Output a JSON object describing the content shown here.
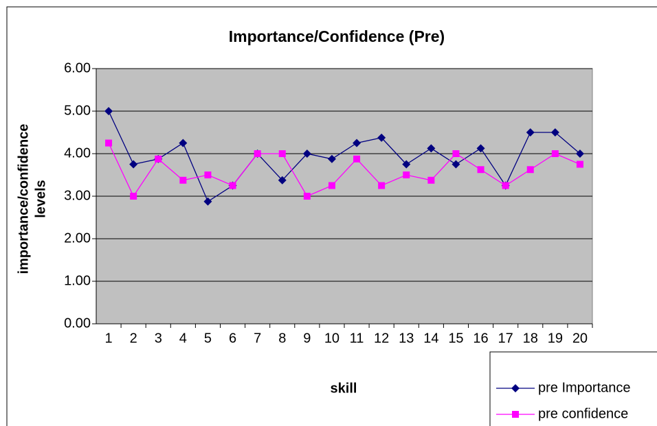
{
  "chart_data": {
    "type": "line",
    "title": "Importance/Confidence (Pre)",
    "x_label": "skill",
    "y_label_lines": [
      "importance/confidence",
      "levels"
    ],
    "categories": [
      "1",
      "2",
      "3",
      "4",
      "5",
      "6",
      "7",
      "8",
      "9",
      "10",
      "11",
      "12",
      "13",
      "14",
      "15",
      "16",
      "17",
      "18",
      "19",
      "20"
    ],
    "series": [
      {
        "name": "pre Importance",
        "color": "#000080",
        "marker": "diamond",
        "values": [
          5.0,
          3.75,
          3.875,
          4.25,
          2.875,
          3.25,
          4.0,
          3.375,
          4.0,
          3.875,
          4.25,
          4.375,
          3.75,
          4.125,
          3.75,
          4.125,
          3.25,
          4.5,
          4.5,
          4.0
        ]
      },
      {
        "name": "pre confidence",
        "color": "#ff00ff",
        "marker": "square",
        "values": [
          4.25,
          3.0,
          3.875,
          3.375,
          3.5,
          3.25,
          4.0,
          4.0,
          3.0,
          3.25,
          3.875,
          3.25,
          3.5,
          3.375,
          4.0,
          3.625,
          3.25,
          3.625,
          4.0,
          3.75
        ]
      }
    ],
    "ylim": [
      0,
      6
    ],
    "yticks": [
      {
        "value": 0,
        "label": "0.00"
      },
      {
        "value": 1,
        "label": "1.00"
      },
      {
        "value": 2,
        "label": "2.00"
      },
      {
        "value": 3,
        "label": "3.00"
      },
      {
        "value": 4,
        "label": "4.00"
      },
      {
        "value": 5,
        "label": "5.00"
      },
      {
        "value": 6,
        "label": "6.00"
      }
    ],
    "grid": true,
    "plot_background": "#c0c0c0",
    "legend": "bottom-right"
  }
}
